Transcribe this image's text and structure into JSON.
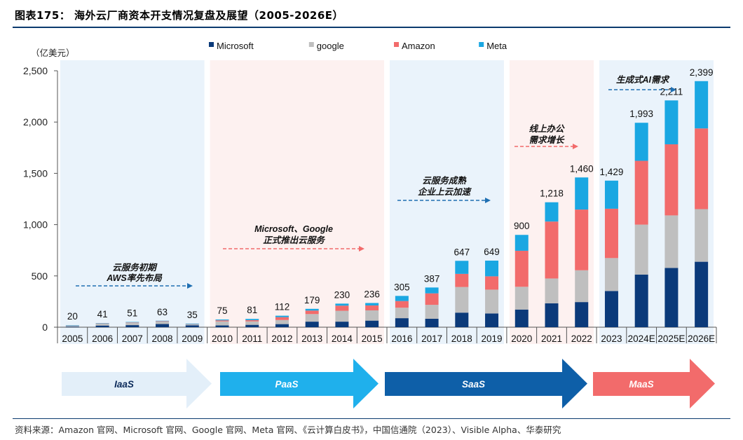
{
  "title": "图表175：  海外云厂商资本开支情况复盘及展望（2005-2026E）",
  "source": "资料来源：Amazon 官网、Microsoft 官网、Google 官网、Meta 官网、《云计算白皮书》，中国信通院（2023）、Visible Alpha、华泰研究",
  "chart_data": {
    "type": "bar",
    "stacked": true,
    "ylabel": "（亿美元）",
    "ylim": [
      0,
      2500
    ],
    "yticks": [
      0,
      500,
      1000,
      1500,
      2000,
      2500
    ],
    "ytick_labels": [
      "0",
      "500",
      "1,000",
      "1,500",
      "2,000",
      "2,500"
    ],
    "legend_position": "top",
    "categories": [
      "2005",
      "2006",
      "2007",
      "2008",
      "2009",
      "2010",
      "2011",
      "2012",
      "2013",
      "2014",
      "2015",
      "2016",
      "2017",
      "2018",
      "2019",
      "2020",
      "2021",
      "2022",
      "2023",
      "2024E",
      "2025E",
      "2026E"
    ],
    "series": [
      {
        "name": "Microsoft",
        "color": "#0b3a7a",
        "values": [
          6,
          16,
          20,
          31,
          19,
          17,
          23,
          30,
          54,
          54,
          64,
          88,
          82,
          142,
          134,
          172,
          233,
          245,
          353,
          513,
          578,
          638
        ]
      },
      {
        "name": "google",
        "color": "#bfbfbf",
        "values": [
          8,
          20,
          24,
          24,
          8,
          40,
          34,
          40,
          74,
          106,
          100,
          102,
          136,
          250,
          232,
          222,
          242,
          310,
          321,
          487,
          512,
          513
        ]
      },
      {
        "name": "Amazon",
        "color": "#f26b6b",
        "values": [
          2,
          2,
          3,
          4,
          3,
          10,
          12,
          28,
          34,
          50,
          48,
          65,
          112,
          128,
          130,
          351,
          555,
          592,
          481,
          622,
          693,
          787
        ]
      },
      {
        "name": "Meta",
        "color": "#1aa7e2",
        "values": [
          4,
          3,
          4,
          4,
          5,
          8,
          12,
          14,
          17,
          20,
          24,
          50,
          57,
          127,
          153,
          155,
          188,
          313,
          274,
          371,
          428,
          461
        ]
      }
    ],
    "totals": [
      20,
      41,
      51,
      63,
      35,
      75,
      81,
      112,
      179,
      230,
      236,
      305,
      387,
      647,
      649,
      900,
      1218,
      1460,
      1429,
      1993,
      2211,
      2399
    ],
    "total_labels": [
      "20",
      "41",
      "51",
      "63",
      "35",
      "75",
      "81",
      "112",
      "179",
      "230",
      "236",
      "305",
      "387",
      "647",
      "649",
      "900",
      "1,218",
      "1,460",
      "1,429",
      "1,993",
      "2,211",
      "2,399"
    ],
    "phases": [
      {
        "name": "IaaS",
        "start": 0,
        "end": 4,
        "bg": "#eaf3fb",
        "arrow": "#e3eff9",
        "arrow_text": "#0b2a5a",
        "note": [
          "云服务初期",
          "AWS率先布局"
        ],
        "note_color": "#1f6fb2"
      },
      {
        "name": "PaaS",
        "start": 5,
        "end": 10,
        "bg": "#fdf1f0",
        "arrow": "#1fb0ec",
        "arrow_text": "#ffffff",
        "note": [
          "Microsoft、Google",
          "正式推出云服务"
        ],
        "note_color": "#f26b6b"
      },
      {
        "name": "SaaS",
        "start": 11,
        "end": 14,
        "bg": "#eaf3fb",
        "arrow": "#0e5fa8",
        "arrow_text": "#ffffff",
        "note": [
          "云服务成熟",
          "企业上云加速"
        ],
        "note_color": "#1f6fb2"
      },
      {
        "name": "",
        "start": 15,
        "end": 17,
        "bg": "#fdf1f0",
        "arrow": "",
        "arrow_text": "",
        "note": [
          "线上办公",
          "需求增长"
        ],
        "note_color": "#f26b6b"
      },
      {
        "name": "MaaS",
        "start": 18,
        "end": 21,
        "bg": "#eaf3fb",
        "arrow": "#f26b6b",
        "arrow_text": "#ffffff",
        "note": [
          "生成式AI需求"
        ],
        "note_color": "#1f6fb2"
      }
    ]
  }
}
